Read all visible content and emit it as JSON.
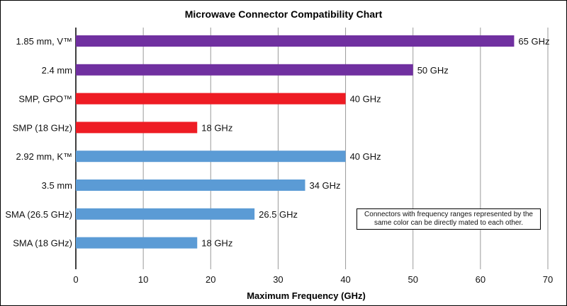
{
  "chart_data": {
    "type": "bar",
    "orientation": "horizontal",
    "title": "Microwave Connector Compatibility Chart",
    "xlabel": "Maximum Frequency (GHz)",
    "ylabel": "",
    "xlim": [
      0,
      70
    ],
    "xticks": [
      0,
      10,
      20,
      30,
      40,
      50,
      60,
      70
    ],
    "grid": "vertical",
    "categories": [
      "1.85 mm, V™",
      "2.4 mm",
      "SMP, GPO™",
      "SMP (18 GHz)",
      "2.92 mm, K™",
      "3.5 mm",
      "SMA (26.5 GHz)",
      "SMA (18 GHz)"
    ],
    "values": [
      65,
      50,
      40,
      18,
      40,
      34,
      26.5,
      18
    ],
    "data_labels": [
      "65 GHz",
      "50 GHz",
      "40 GHz",
      "18 GHz",
      "40 GHz",
      "34 GHz",
      "26.5 GHz",
      "18 GHz"
    ],
    "bar_colors": [
      "#7030a0",
      "#7030a0",
      "#ee1c24",
      "#ee1c24",
      "#5b9bd5",
      "#5b9bd5",
      "#5b9bd5",
      "#5b9bd5"
    ],
    "annotation": "Connectors with frequency ranges represented by the same color can be directly mated to each other."
  }
}
